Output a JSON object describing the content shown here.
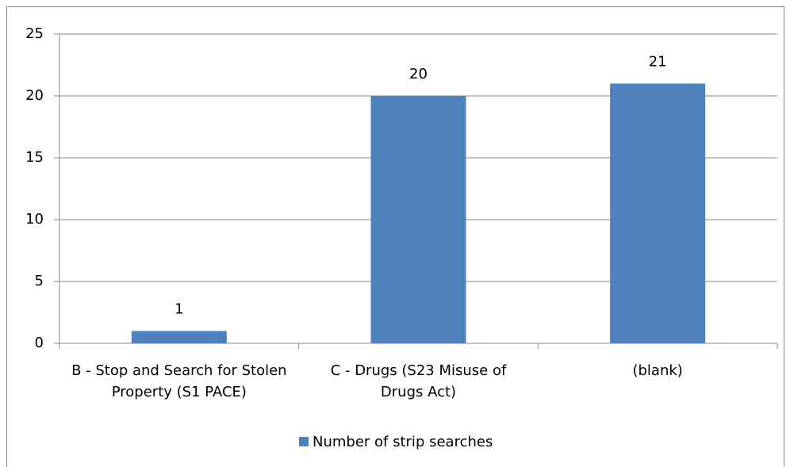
{
  "chart_data": {
    "type": "bar",
    "categories": [
      "B - Stop and Search for Stolen Property (S1 PACE)",
      "C - Drugs (S23 Misuse of Drugs Act)",
      "(blank)"
    ],
    "series": [
      {
        "name": "Number of strip searches",
        "color": "#4f81bd",
        "values": [
          1,
          20,
          21
        ]
      }
    ],
    "ylim": [
      0,
      25
    ],
    "yticks": [
      0,
      5,
      10,
      15,
      20,
      25
    ],
    "grid": true,
    "legend": "bottom",
    "data_labels": true
  }
}
